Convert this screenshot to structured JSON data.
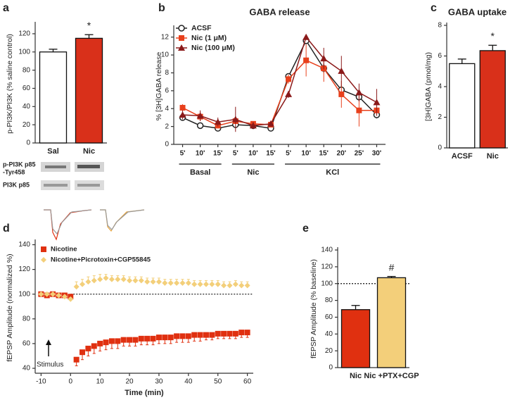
{
  "chart_data": [
    {
      "type": "bar",
      "panel": "a",
      "ylabel": "p-PI3K/PI3K (% saline control)",
      "categories": [
        "Sal",
        "Nic"
      ],
      "values": [
        100,
        115
      ],
      "errors": [
        3,
        4
      ],
      "colors": [
        "#ffffff",
        "#d9301a"
      ],
      "ylim": [
        0,
        130
      ],
      "yticks": [
        0,
        20,
        40,
        60,
        80,
        100,
        120
      ],
      "annotation": "*",
      "blot_labels": [
        "p-PI3K p85",
        "-Tyr458",
        "PI3K p85"
      ]
    },
    {
      "type": "line",
      "panel": "b",
      "title": "GABA release",
      "ylabel": "% [3H]GABA release",
      "categories": [
        "5'",
        "10'",
        "15'",
        "5'",
        "10'",
        "15'",
        "5'",
        "10'",
        "15'",
        "20'",
        "25'",
        "30'"
      ],
      "groups": [
        "Basal",
        "Nic",
        "KCl"
      ],
      "ylim": [
        0,
        13
      ],
      "yticks": [
        0,
        2,
        4,
        6,
        8,
        10,
        12
      ],
      "series": [
        {
          "name": "ACSF",
          "color": "#222222",
          "marker": "circle",
          "values": [
            3,
            2.1,
            1.8,
            2.2,
            2.1,
            1.8,
            7.6,
            11.6,
            8.5,
            6.1,
            5.3,
            3.3
          ],
          "errors": [
            0.3,
            0.2,
            0.2,
            0.3,
            0.2,
            0.3,
            0.3,
            0.4,
            0.5,
            0.5,
            0.3,
            0.4
          ]
        },
        {
          "name": "Nic (1 μM)",
          "color": "#e8401c",
          "marker": "square",
          "values": [
            4.1,
            3.1,
            2.1,
            2.6,
            2.3,
            2.2,
            7.3,
            9.4,
            8.5,
            5.6,
            3.8,
            3.8
          ],
          "errors": [
            0.4,
            0.5,
            0.3,
            0.3,
            0.3,
            0.3,
            0.5,
            1.8,
            1.5,
            1.5,
            1.8,
            0.6
          ]
        },
        {
          "name": "Nic (100 μM)",
          "color": "#8b1a1a",
          "marker": "triangle",
          "values": [
            3.3,
            3.2,
            2.5,
            2.8,
            2.1,
            2.3,
            5.6,
            12,
            9.6,
            8.2,
            5.8,
            4.7
          ],
          "errors": [
            0.5,
            0.6,
            0.5,
            1.4,
            0.4,
            0.3,
            0.4,
            0.3,
            1.2,
            1.7,
            1,
            1.5
          ]
        }
      ]
    },
    {
      "type": "bar",
      "panel": "c",
      "title": "GABA uptake",
      "ylabel": "[3H]GABA (pmol/mg)",
      "categories": [
        "ACSF",
        "Nic"
      ],
      "values": [
        5.5,
        6.35
      ],
      "errors": [
        0.3,
        0.35
      ],
      "colors": [
        "#ffffff",
        "#d9301a"
      ],
      "ylim": [
        0,
        8
      ],
      "yticks": [
        0,
        2,
        4,
        6,
        8
      ],
      "annotation": "*"
    },
    {
      "type": "scatter",
      "panel": "d",
      "ylabel": "fEPSP Amplitude (normalized %)",
      "xlabel": "Time (min)",
      "annotation": "Stimulus",
      "reference_line": 100,
      "x": [
        -10,
        -8,
        -6,
        -4,
        -2,
        0,
        2,
        4,
        6,
        8,
        10,
        12,
        14,
        16,
        18,
        20,
        22,
        24,
        26,
        28,
        30,
        32,
        34,
        36,
        38,
        40,
        42,
        44,
        46,
        48,
        50,
        52,
        54,
        56,
        58,
        60
      ],
      "xlim": [
        -12,
        62
      ],
      "xticks": [
        -10,
        0,
        10,
        20,
        30,
        40,
        50,
        60
      ],
      "ylim": [
        36,
        142
      ],
      "yticks": [
        40,
        60,
        80,
        100,
        120,
        140
      ],
      "series": [
        {
          "name": "Nicotine",
          "color": "#e03010",
          "marker": "square",
          "error_direction": "down",
          "values": [
            100,
            99,
            100,
            99,
            99,
            98,
            47,
            53,
            56,
            58,
            60,
            61,
            62,
            62,
            63,
            63,
            63,
            64,
            64,
            64,
            65,
            65,
            65,
            66,
            66,
            66,
            67,
            67,
            67,
            67,
            68,
            68,
            68,
            68,
            69,
            69
          ],
          "errors": [
            1,
            1,
            1,
            1,
            1,
            1,
            5,
            6,
            6,
            6,
            6,
            6,
            6,
            6,
            5,
            5,
            5,
            5,
            5,
            5,
            5,
            5,
            5,
            5,
            5,
            5,
            5,
            5,
            4,
            4,
            4,
            4,
            4,
            4,
            4,
            4
          ]
        },
        {
          "name": "Nicotine+Picrotoxin+CGP55845",
          "color": "#f3cf7a",
          "marker": "diamond",
          "error_direction": "up",
          "values": [
            100,
            100,
            100,
            99,
            98,
            96,
            106,
            108,
            110,
            111,
            112,
            113,
            112,
            112,
            112,
            111,
            111,
            111,
            110,
            110,
            110,
            109,
            109,
            109,
            109,
            109,
            108,
            108,
            108,
            108,
            108,
            107,
            107,
            108,
            107,
            107
          ],
          "errors": [
            1,
            1,
            1,
            1,
            1,
            1,
            4,
            4,
            4,
            4,
            4,
            3,
            3,
            3,
            3,
            3,
            3,
            3,
            3,
            3,
            3,
            3,
            3,
            3,
            3,
            3,
            3,
            3,
            3,
            3,
            3,
            3,
            3,
            3,
            3,
            3
          ]
        }
      ]
    },
    {
      "type": "bar",
      "panel": "e",
      "ylabel": "fEPSP Amplitude (% baseline)",
      "categories": [
        "Nic",
        "Nic +PTX+CGP"
      ],
      "values": [
        69,
        107
      ],
      "errors": [
        5,
        1.5
      ],
      "colors": [
        "#e03010",
        "#f3cf7a"
      ],
      "ylim": [
        0,
        140
      ],
      "yticks": [
        0,
        20,
        40,
        60,
        80,
        100,
        120,
        140
      ],
      "annotation": "#",
      "reference_line": 100
    }
  ]
}
